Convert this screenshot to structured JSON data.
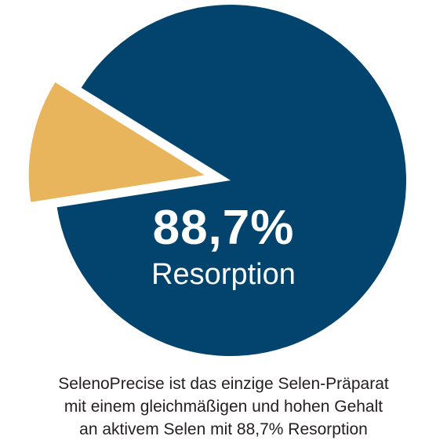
{
  "chart_data": {
    "type": "pie",
    "categories": [
      "Resorption",
      ""
    ],
    "values": [
      88.7,
      11.3
    ],
    "colors": [
      "#02446e",
      "#e8b45c"
    ],
    "exploded": [
      false,
      true
    ],
    "center_value": "88,7%",
    "center_label": "Resorption"
  },
  "caption": {
    "lines": [
      "SelenoPrecise ist das einzige Selen-Präparat",
      "mit einem gleichmäßigen und hohen Gehalt",
      "an aktivem Selen mit 88,7% Resorption"
    ]
  }
}
